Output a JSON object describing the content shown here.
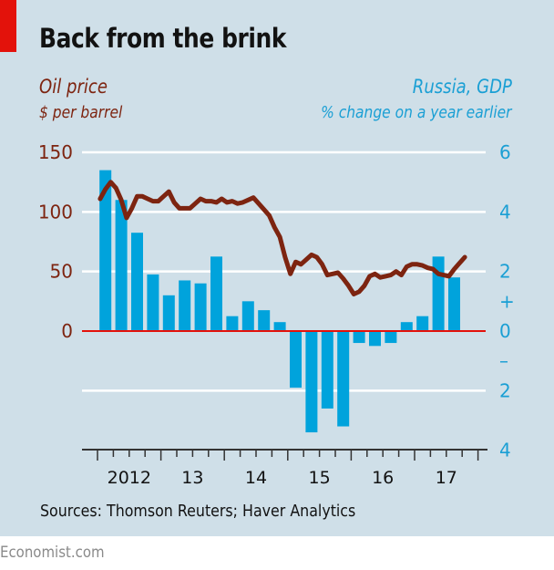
{
  "header": {
    "title": "Back from the brink",
    "left_label": "Oil price",
    "left_unit": "$ per barrel",
    "right_label": "Russia, GDP",
    "right_unit": "% change on a year earlier"
  },
  "footer": {
    "source": "Sources: Thomson Reuters; Haver Analytics",
    "brand": "Economist.com"
  },
  "colors": {
    "oil_line": "#7d2410",
    "gdp_bars": "#00a3dc",
    "zero_line": "#e3120b",
    "background": "#cfdfe8",
    "accent": "#e3120b"
  },
  "chart_data": {
    "type": "bar+line",
    "title": "Back from the brink",
    "xlabel": "",
    "x_tick_labels": [
      "2012",
      "13",
      "14",
      "15",
      "16",
      "17"
    ],
    "left_axis": {
      "label": "Oil price, $ per barrel",
      "ylim": [
        0,
        150
      ],
      "ticks": [
        "150",
        "100",
        "50",
        "0"
      ]
    },
    "right_axis": {
      "label": "Russia, GDP, % change on a year earlier",
      "ylim": [
        -4,
        6
      ],
      "ticks": [
        "6",
        "4",
        "2",
        "+",
        "0",
        "–",
        "2",
        "4"
      ]
    },
    "grid": true,
    "series": [
      {
        "name": "Russia, GDP",
        "type": "bar",
        "axis": "right",
        "categories": [
          "2012Q1",
          "2012Q2",
          "2012Q3",
          "2012Q4",
          "2013Q1",
          "2013Q2",
          "2013Q3",
          "2013Q4",
          "2014Q1",
          "2014Q2",
          "2014Q3",
          "2014Q4",
          "2015Q1",
          "2015Q2",
          "2015Q3",
          "2015Q4",
          "2016Q1",
          "2016Q2",
          "2016Q3",
          "2016Q4",
          "2017Q1",
          "2017Q2",
          "2017Q3"
        ],
        "values": [
          5.4,
          4.4,
          3.3,
          1.9,
          1.2,
          1.7,
          1.6,
          2.5,
          0.5,
          1.0,
          0.7,
          0.3,
          -1.9,
          -3.4,
          -2.6,
          -3.2,
          -0.4,
          -0.5,
          -0.4,
          0.3,
          0.5,
          2.5,
          1.8
        ]
      },
      {
        "name": "Oil price",
        "type": "line",
        "axis": "left",
        "start": "2012-01",
        "frequency": "monthly",
        "values": [
          111,
          119,
          125,
          120,
          110,
          95,
          103,
          113,
          113,
          111,
          109,
          109,
          113,
          117,
          108,
          103,
          103,
          103,
          107,
          111,
          109,
          109,
          108,
          111,
          108,
          109,
          107,
          108,
          110,
          112,
          107,
          102,
          97,
          87,
          79,
          62,
          48,
          58,
          56,
          60,
          64,
          62,
          56,
          47,
          48,
          49,
          44,
          38,
          31,
          33,
          38,
          46,
          48,
          45,
          46,
          47,
          50,
          47,
          54,
          56,
          56,
          55,
          53,
          52,
          48,
          47,
          46,
          52,
          57,
          62
        ]
      }
    ]
  }
}
